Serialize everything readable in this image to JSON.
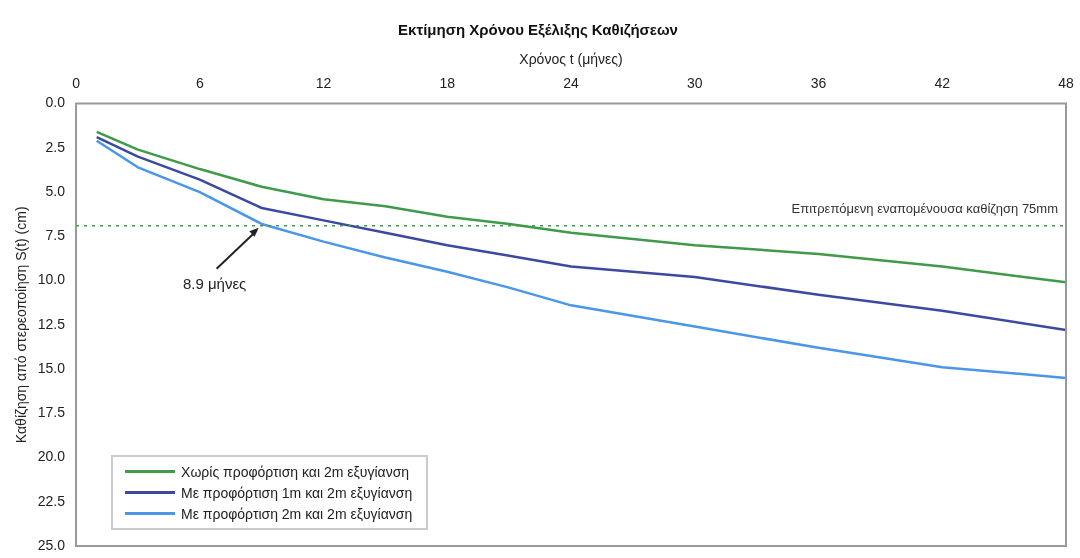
{
  "chart_data": {
    "type": "line",
    "title": "Εκτίμηση Χρόνου Εξέλιξης Καθιζήσεων",
    "xlabel": "Χρόνος t (μήνες)",
    "ylabel": "Καθίζηση από στερεοποίηση S(t) (cm)",
    "x": [
      1,
      3,
      6,
      9,
      12,
      15,
      18,
      21,
      24,
      30,
      36,
      42,
      48
    ],
    "series": [
      {
        "name": "Χωρίς προφόρτιση και 2m εξυγίανση",
        "color": "#3f9a4a",
        "values": [
          1.6,
          2.6,
          3.7,
          4.7,
          5.4,
          5.8,
          6.4,
          6.8,
          7.3,
          8.0,
          8.5,
          9.2,
          10.1
        ]
      },
      {
        "name": "Με προφόρτιση 1m και 2m εξυγίανση",
        "color": "#3b4aa0",
        "values": [
          1.9,
          3.0,
          4.3,
          5.9,
          6.6,
          7.3,
          8.0,
          8.6,
          9.2,
          9.8,
          10.8,
          11.7,
          12.8
        ]
      },
      {
        "name": "Με προφόρτιση 2m και 2m εξυγίανση",
        "color": "#4a96e8",
        "values": [
          2.1,
          3.6,
          5.0,
          6.8,
          7.8,
          8.7,
          9.5,
          10.4,
          11.4,
          12.6,
          13.8,
          14.9,
          15.5
        ]
      }
    ],
    "xlim": [
      0,
      48
    ],
    "xticks": [
      0,
      6,
      12,
      18,
      24,
      30,
      36,
      42,
      48
    ],
    "ylim": [
      25,
      0
    ],
    "yticks": [
      {
        "value": 0,
        "label": "0.0"
      },
      2.5,
      {
        "value": 5,
        "label": "5.0"
      },
      7.5,
      {
        "value": 10,
        "label": "10.0"
      },
      12.5,
      {
        "value": 15,
        "label": "15.0"
      },
      17.5,
      {
        "value": 20,
        "label": "20.0"
      },
      22.5,
      {
        "value": 25,
        "label": "25.0"
      }
    ],
    "ref_lines": [
      {
        "axis": "y",
        "value": 6.9,
        "label": "Επιτρεπόμενη εναπομένουσα καθίζηση 75mm",
        "color": "#3f9a4a",
        "line_style": "dotted"
      }
    ],
    "annotations": [
      {
        "text": "8.9 μήνες",
        "x": 8.9,
        "y": 6.9
      }
    ],
    "legend": "bottom left",
    "grid": false,
    "marker": "none",
    "line_style": "solid"
  }
}
